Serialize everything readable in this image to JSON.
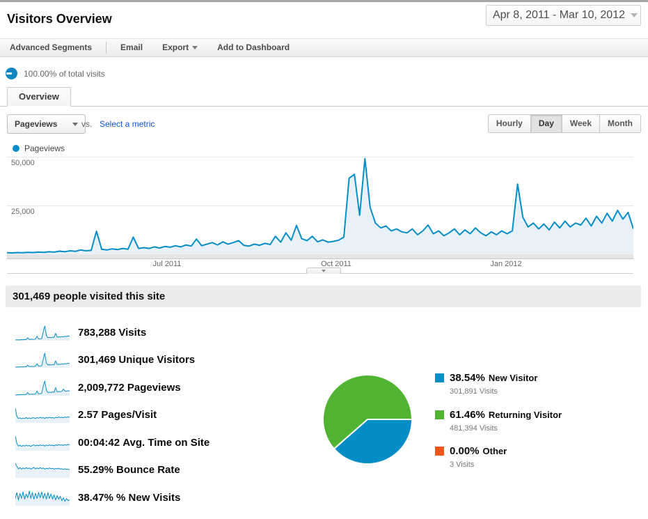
{
  "header": {
    "title": "Visitors Overview",
    "date_range": "Apr 8, 2011 - Mar 10, 2012"
  },
  "toolbar": {
    "items": [
      "Advanced Segments",
      "Email",
      "Export",
      "Add to Dashboard"
    ]
  },
  "segment": {
    "label": "100.00% of total visits"
  },
  "tab": {
    "label": "Overview"
  },
  "controls": {
    "metric_dropdown": "Pageviews",
    "vs_label": "vs.",
    "select_metric_link": "Select a metric",
    "granularity": {
      "options": [
        "Hourly",
        "Day",
        "Week",
        "Month"
      ],
      "active": "Day"
    }
  },
  "legend": {
    "series_label": "Pageviews"
  },
  "colors": {
    "line_blue": "#058dc7",
    "area_fill": "#e8f1f8",
    "pie_green": "#50b432",
    "pie_orange": "#ed561b",
    "link_blue": "#1155cc"
  },
  "chart_data": [
    {
      "type": "area",
      "title": "Pageviews over time",
      "x_range_label": "Apr 8, 2011 - Mar 10, 2012",
      "y_ticks": [
        "50,000",
        "25,000"
      ],
      "x_ticks": [
        {
          "label": "Jul 2011"
        },
        {
          "label": "Oct 2011"
        },
        {
          "label": "Jan 2012"
        }
      ],
      "ylim": [
        0,
        51000
      ],
      "grid": true,
      "legend_position": "top-left",
      "series": [
        {
          "name": "Pageviews",
          "values": [
            800,
            700,
            900,
            800,
            1000,
            900,
            1100,
            1000,
            1300,
            1100,
            1600,
            1300,
            1800,
            1500,
            2200,
            1800,
            2000,
            11800,
            2600,
            2200,
            2800,
            2400,
            3000,
            2600,
            8800,
            3000,
            3400,
            3000,
            3800,
            3200,
            4000,
            3600,
            4400,
            3800,
            4800,
            4200,
            7800,
            4400,
            5200,
            6000,
            4800,
            6400,
            5200,
            6000,
            7000,
            4600,
            4200,
            5200,
            4600,
            5600,
            5000,
            9200,
            6200,
            11000,
            7200,
            14800,
            8000,
            7000,
            9200,
            6400,
            7400,
            6200,
            6600,
            7200,
            8800,
            39000,
            41000,
            20000,
            49000,
            24000,
            16000,
            13500,
            14500,
            12000,
            13000,
            11500,
            11000,
            13000,
            10000,
            12000,
            15000,
            10500,
            12000,
            9500,
            11000,
            13000,
            10000,
            12500,
            10500,
            13500,
            11000,
            9500,
            11500,
            10000,
            12000,
            10500,
            12000,
            36000,
            19000,
            14000,
            16000,
            13000,
            15500,
            12500,
            16500,
            13500,
            17000,
            14000,
            16000,
            15000,
            18500,
            14500,
            19500,
            16000,
            21000,
            17000,
            22500,
            18000,
            21500,
            13000
          ]
        }
      ]
    },
    {
      "type": "pie",
      "title": "Visitor type split",
      "slices": [
        {
          "name": "New Visitor",
          "pct": 38.54,
          "pct_label": "38.54%",
          "visits_label": "301,891 Visits",
          "color": "#058dc7"
        },
        {
          "name": "Returning Visitor",
          "pct": 61.46,
          "pct_label": "61.46%",
          "visits_label": "481,394 Visits",
          "color": "#50b432"
        },
        {
          "name": "Other",
          "pct": 0.0,
          "pct_label": "0.00%",
          "visits_label": "3 Visits",
          "color": "#ed561b"
        }
      ]
    }
  ],
  "summary": {
    "text": "301,469 people visited this site"
  },
  "metrics": [
    {
      "value": "783,288",
      "label": "Visits",
      "spark": [
        0.05,
        0.05,
        0.06,
        0.05,
        0.07,
        0.06,
        0.08,
        0.07,
        0.2,
        0.08,
        0.09,
        0.1,
        0.09,
        0.11,
        0.3,
        0.12,
        0.13,
        0.14,
        0.6,
        1.0,
        0.35,
        0.2,
        0.22,
        0.2,
        0.24,
        0.22,
        0.5,
        0.24,
        0.26,
        0.25,
        0.28,
        0.26,
        0.3,
        0.28,
        0.32,
        0.3
      ]
    },
    {
      "value": "301,469",
      "label": "Unique Visitors",
      "spark": [
        0.05,
        0.05,
        0.06,
        0.06,
        0.07,
        0.06,
        0.08,
        0.07,
        0.18,
        0.08,
        0.09,
        0.1,
        0.09,
        0.12,
        0.28,
        0.12,
        0.13,
        0.14,
        0.58,
        1.0,
        0.33,
        0.2,
        0.21,
        0.2,
        0.23,
        0.21,
        0.48,
        0.23,
        0.25,
        0.24,
        0.27,
        0.25,
        0.29,
        0.27,
        0.31,
        0.29
      ]
    },
    {
      "value": "2,009,772",
      "label": "Pageviews",
      "spark": [
        0.05,
        0.05,
        0.07,
        0.06,
        0.08,
        0.07,
        0.09,
        0.08,
        0.22,
        0.09,
        0.1,
        0.11,
        0.1,
        0.12,
        0.32,
        0.13,
        0.14,
        0.16,
        0.65,
        1.0,
        0.38,
        0.22,
        0.24,
        0.22,
        0.26,
        0.24,
        0.55,
        0.26,
        0.28,
        0.27,
        0.3,
        0.45,
        0.32,
        0.3,
        0.34,
        0.32
      ]
    },
    {
      "value": "2.57",
      "label": "Pages/Visit",
      "spark": [
        1.0,
        0.45,
        0.3,
        0.35,
        0.28,
        0.33,
        0.3,
        0.36,
        0.3,
        0.34,
        0.29,
        0.35,
        0.35,
        0.3,
        0.36,
        0.32,
        0.38,
        0.33,
        0.36,
        0.3,
        0.37,
        0.33,
        0.38,
        0.34,
        0.36,
        0.32,
        0.38,
        0.35,
        0.4,
        0.36,
        0.38,
        0.35,
        0.4,
        0.37,
        0.42,
        0.38
      ]
    },
    {
      "value": "00:04:42",
      "label": "Avg. Time on Site",
      "spark": [
        1.0,
        0.5,
        0.32,
        0.38,
        0.3,
        0.36,
        0.32,
        0.38,
        0.33,
        0.36,
        0.3,
        0.37,
        0.4,
        0.33,
        0.38,
        0.34,
        0.4,
        0.35,
        0.38,
        0.32,
        0.39,
        0.35,
        0.4,
        0.36,
        0.38,
        0.34,
        0.4,
        0.36,
        0.42,
        0.38,
        0.4,
        0.36,
        0.42,
        0.38,
        0.44,
        0.4
      ]
    },
    {
      "value": "55.29%",
      "label": "Bounce Rate",
      "spark": [
        1.0,
        0.8,
        0.62,
        0.7,
        0.6,
        0.68,
        0.62,
        0.7,
        0.64,
        0.68,
        0.6,
        0.66,
        0.72,
        0.62,
        0.68,
        0.63,
        0.7,
        0.64,
        0.68,
        0.6,
        0.66,
        0.62,
        0.68,
        0.63,
        0.66,
        0.6,
        0.65,
        0.62,
        0.66,
        0.6,
        0.63,
        0.58,
        0.62,
        0.58,
        0.6,
        0.55
      ]
    },
    {
      "value": "38.47%",
      "label": "% New Visits",
      "spark": [
        0.5,
        0.9,
        0.4,
        0.85,
        0.5,
        0.95,
        0.45,
        0.8,
        0.55,
        1.0,
        0.5,
        0.9,
        0.45,
        0.85,
        0.5,
        0.9,
        0.55,
        0.95,
        0.5,
        0.85,
        0.45,
        0.9,
        0.5,
        0.8,
        0.45,
        0.75,
        0.4,
        0.7,
        0.45,
        0.65,
        0.35,
        0.55,
        0.3,
        0.5,
        0.35,
        0.4
      ]
    }
  ]
}
